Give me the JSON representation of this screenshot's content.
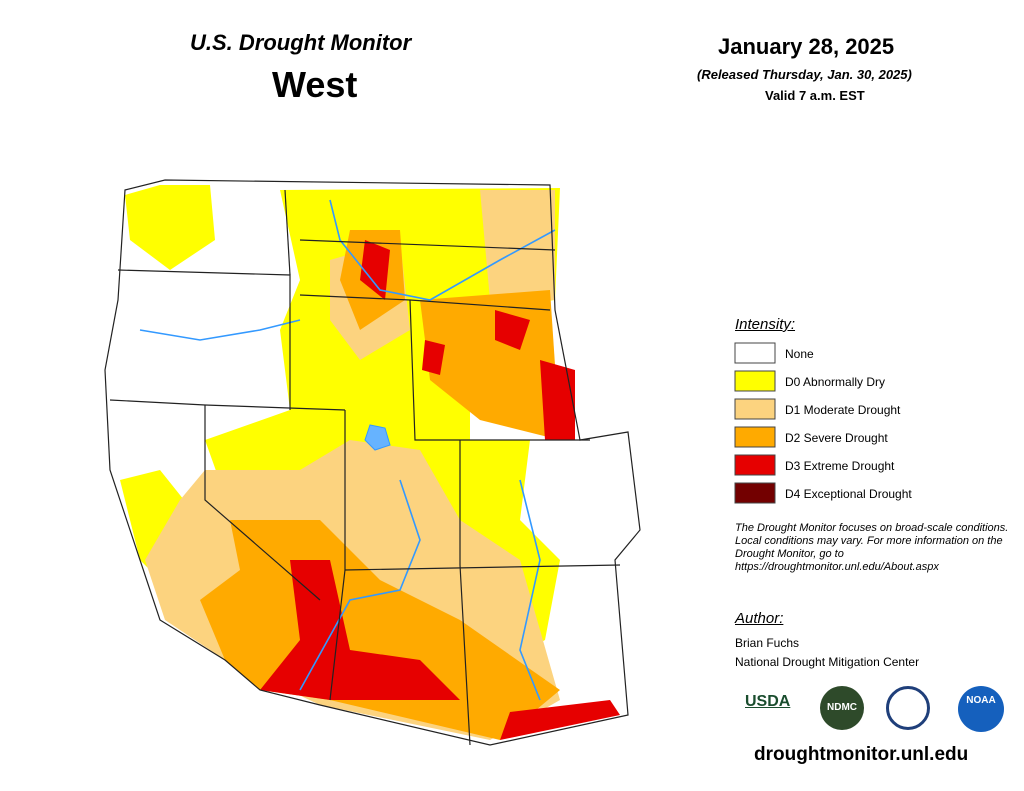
{
  "header": {
    "title": "U.S. Drought Monitor",
    "region": "West",
    "date": "January 28, 2025",
    "released": "(Released Thursday, Jan. 30, 2025)",
    "valid": "Valid 7 a.m. EST"
  },
  "legend": {
    "heading": "Intensity:",
    "items": [
      {
        "label": "None",
        "color": "#ffffff"
      },
      {
        "label": "D0 Abnormally Dry",
        "color": "#ffff00"
      },
      {
        "label": "D1 Moderate Drought",
        "color": "#fcd37f"
      },
      {
        "label": "D2 Severe Drought",
        "color": "#ffaa00"
      },
      {
        "label": "D3 Extreme Drought",
        "color": "#e60000"
      },
      {
        "label": "D4 Exceptional Drought",
        "color": "#730000"
      }
    ]
  },
  "note": "The Drought Monitor focuses on broad-scale conditions. Local conditions may vary. For more information on the Drought Monitor, go to https://droughtmonitor.unl.edu/About.aspx",
  "author": {
    "heading": "Author:",
    "name": "Brian Fuchs",
    "organization": "National Drought Mitigation Center"
  },
  "logos": [
    "USDA",
    "NDMC",
    "NOAA"
  ],
  "website": "droughtmonitor.unl.edu"
}
